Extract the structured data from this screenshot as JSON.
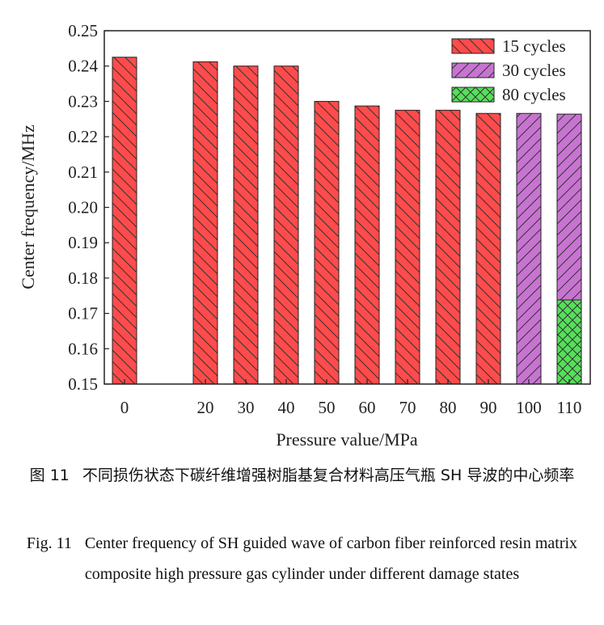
{
  "chart_data": {
    "type": "bar",
    "title": "",
    "xlabel": "Pressure value/MPa",
    "ylabel": "Center frequency/MHz",
    "ylim": [
      0.15,
      0.25
    ],
    "yticks": [
      "0.15",
      "0.16",
      "0.17",
      "0.18",
      "0.19",
      "0.20",
      "0.21",
      "0.22",
      "0.23",
      "0.24",
      "0.25"
    ],
    "categories": [
      "0",
      "20",
      "30",
      "40",
      "50",
      "60",
      "70",
      "80",
      "90",
      "100",
      "110"
    ],
    "x_positions": [
      0,
      2,
      3,
      4,
      5,
      6,
      7,
      8,
      9,
      10,
      11
    ],
    "bars": [
      {
        "category": "0",
        "segments": [
          {
            "series": "15 cycles",
            "value": 0.2425
          }
        ]
      },
      {
        "category": "20",
        "segments": [
          {
            "series": "15 cycles",
            "value": 0.2412
          }
        ]
      },
      {
        "category": "30",
        "segments": [
          {
            "series": "15 cycles",
            "value": 0.24
          }
        ]
      },
      {
        "category": "40",
        "segments": [
          {
            "series": "15 cycles",
            "value": 0.24
          }
        ]
      },
      {
        "category": "50",
        "segments": [
          {
            "series": "15 cycles",
            "value": 0.23
          }
        ]
      },
      {
        "category": "60",
        "segments": [
          {
            "series": "15 cycles",
            "value": 0.2287
          }
        ]
      },
      {
        "category": "70",
        "segments": [
          {
            "series": "15 cycles",
            "value": 0.2275
          }
        ]
      },
      {
        "category": "80",
        "segments": [
          {
            "series": "15 cycles",
            "value": 0.2275
          }
        ]
      },
      {
        "category": "90",
        "segments": [
          {
            "series": "15 cycles",
            "value": 0.2266
          }
        ]
      },
      {
        "category": "100",
        "segments": [
          {
            "series": "30 cycles",
            "value": 0.2266
          }
        ]
      },
      {
        "category": "110",
        "segments": [
          {
            "series": "30 cycles",
            "value": 0.2264
          },
          {
            "series": "80 cycles",
            "value": 0.1738
          }
        ]
      }
    ],
    "series": [
      {
        "name": "15 cycles",
        "color": "#ff4b4b",
        "hatch": "back-diagonal"
      },
      {
        "name": "30 cycles",
        "color": "#c774d1",
        "hatch": "forward-diagonal"
      },
      {
        "name": "80 cycles",
        "color": "#55e05a",
        "hatch": "cross"
      }
    ],
    "legend_position": "top-right",
    "grid": false
  },
  "caption": {
    "cn_number": "图 11",
    "cn_text": "不同损伤状态下碳纤维增强树脂基复合材料高压气瓶 SH 导波的中心频率",
    "en_number": "Fig. 11",
    "en_text": "Center frequency of SH guided wave of carbon fiber reinforced resin matrix composite high pressure gas cylinder under different damage states"
  }
}
